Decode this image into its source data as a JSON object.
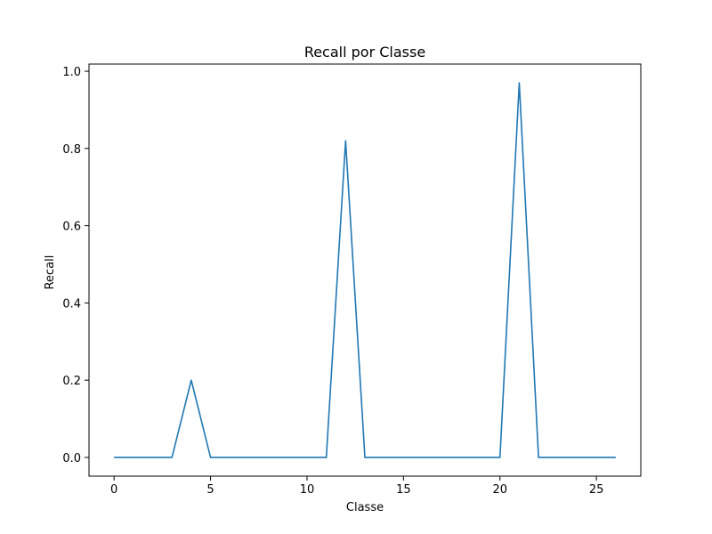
{
  "chart_data": {
    "type": "line",
    "title": "Recall por Classe",
    "xlabel": "Classe",
    "ylabel": "Recall",
    "xlim": [
      -1.3,
      27.3
    ],
    "ylim": [
      -0.0485,
      1.0185
    ],
    "xticks": [
      0,
      5,
      10,
      15,
      20,
      25
    ],
    "xtick_labels": [
      "0",
      "5",
      "10",
      "15",
      "20",
      "25"
    ],
    "yticks": [
      0.0,
      0.2,
      0.4,
      0.6,
      0.8,
      1.0
    ],
    "ytick_labels": [
      "0.0",
      "0.2",
      "0.4",
      "0.6",
      "0.8",
      "1.0"
    ],
    "grid": false,
    "series": [
      {
        "color": "#1f77b4",
        "x": [
          0,
          1,
          2,
          3,
          4,
          5,
          6,
          7,
          8,
          9,
          10,
          11,
          12,
          13,
          14,
          15,
          16,
          17,
          18,
          19,
          20,
          21,
          22,
          23,
          24,
          25,
          26
        ],
        "values": [
          0,
          0,
          0,
          0,
          0.2,
          0,
          0,
          0,
          0,
          0,
          0,
          0,
          0.82,
          0,
          0,
          0,
          0,
          0,
          0,
          0,
          0,
          0.97,
          0,
          0,
          0,
          0,
          0
        ]
      }
    ]
  }
}
